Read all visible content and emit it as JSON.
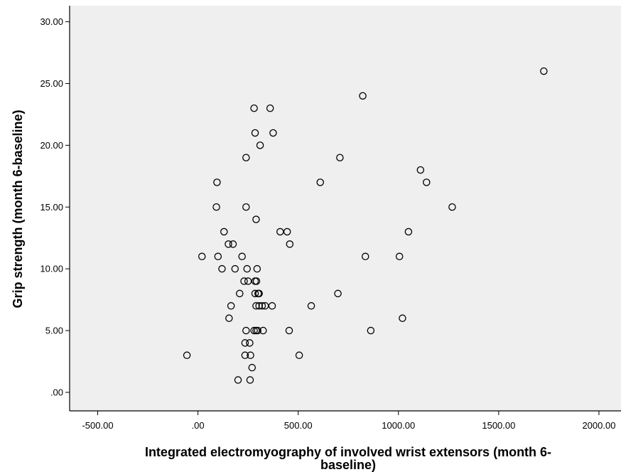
{
  "chart_data": {
    "type": "scatter",
    "xlabel_lines": [
      "Integrated electromyography of involved wrist extensors (month 6-",
      "baseline)"
    ],
    "ylabel": "Grip strength (month 6-baseline)",
    "xlim": [
      -640,
      2110
    ],
    "ylim": [
      -1.5,
      31.3
    ],
    "xticks": [
      -500,
      0,
      500,
      1000,
      1500,
      2000
    ],
    "xtick_labels": [
      "-500.00",
      ".00",
      "500.00",
      "1000.00",
      "1500.00",
      "2000.00"
    ],
    "yticks": [
      0,
      5,
      10,
      15,
      20,
      25,
      30
    ],
    "ytick_labels": [
      ".00",
      "5.00",
      "10.00",
      "15.00",
      "20.00",
      "25.00",
      "30.00"
    ],
    "grid": false,
    "legend": "none",
    "colors": {
      "plot_background": "#efefef",
      "marker_stroke": "#000000",
      "axis": "#000000"
    },
    "points": [
      {
        "x": 1725,
        "y": 26
      },
      {
        "x": 822,
        "y": 24
      },
      {
        "x": 280,
        "y": 23
      },
      {
        "x": 360,
        "y": 23
      },
      {
        "x": 285,
        "y": 21
      },
      {
        "x": 375,
        "y": 21
      },
      {
        "x": 310,
        "y": 20
      },
      {
        "x": 240,
        "y": 19
      },
      {
        "x": 708,
        "y": 19
      },
      {
        "x": 1110,
        "y": 18
      },
      {
        "x": 95,
        "y": 17
      },
      {
        "x": 610,
        "y": 17
      },
      {
        "x": 1140,
        "y": 17
      },
      {
        "x": 92,
        "y": 15
      },
      {
        "x": 240,
        "y": 15
      },
      {
        "x": 1268,
        "y": 15
      },
      {
        "x": 290,
        "y": 14
      },
      {
        "x": 130,
        "y": 13
      },
      {
        "x": 410,
        "y": 13
      },
      {
        "x": 445,
        "y": 13
      },
      {
        "x": 1050,
        "y": 13
      },
      {
        "x": 152,
        "y": 12
      },
      {
        "x": 175,
        "y": 12
      },
      {
        "x": 458,
        "y": 12
      },
      {
        "x": 20,
        "y": 11
      },
      {
        "x": 100,
        "y": 11
      },
      {
        "x": 220,
        "y": 11
      },
      {
        "x": 835,
        "y": 11
      },
      {
        "x": 1005,
        "y": 11
      },
      {
        "x": 120,
        "y": 10
      },
      {
        "x": 185,
        "y": 10
      },
      {
        "x": 245,
        "y": 10
      },
      {
        "x": 295,
        "y": 10
      },
      {
        "x": 230,
        "y": 9
      },
      {
        "x": 250,
        "y": 9
      },
      {
        "x": 285,
        "y": 9
      },
      {
        "x": 292,
        "y": 9
      },
      {
        "x": 208,
        "y": 8
      },
      {
        "x": 285,
        "y": 8
      },
      {
        "x": 300,
        "y": 8
      },
      {
        "x": 305,
        "y": 8
      },
      {
        "x": 698,
        "y": 8
      },
      {
        "x": 165,
        "y": 7
      },
      {
        "x": 290,
        "y": 7
      },
      {
        "x": 305,
        "y": 7
      },
      {
        "x": 320,
        "y": 7
      },
      {
        "x": 335,
        "y": 7
      },
      {
        "x": 370,
        "y": 7
      },
      {
        "x": 565,
        "y": 7
      },
      {
        "x": 155,
        "y": 6
      },
      {
        "x": 1020,
        "y": 6
      },
      {
        "x": 240,
        "y": 5
      },
      {
        "x": 280,
        "y": 5
      },
      {
        "x": 290,
        "y": 5
      },
      {
        "x": 298,
        "y": 5
      },
      {
        "x": 325,
        "y": 5
      },
      {
        "x": 455,
        "y": 5
      },
      {
        "x": 862,
        "y": 5
      },
      {
        "x": 235,
        "y": 4
      },
      {
        "x": 258,
        "y": 4
      },
      {
        "x": -55,
        "y": 3
      },
      {
        "x": 235,
        "y": 3
      },
      {
        "x": 262,
        "y": 3
      },
      {
        "x": 505,
        "y": 3
      },
      {
        "x": 270,
        "y": 2
      },
      {
        "x": 200,
        "y": 1
      },
      {
        "x": 260,
        "y": 1
      }
    ]
  }
}
